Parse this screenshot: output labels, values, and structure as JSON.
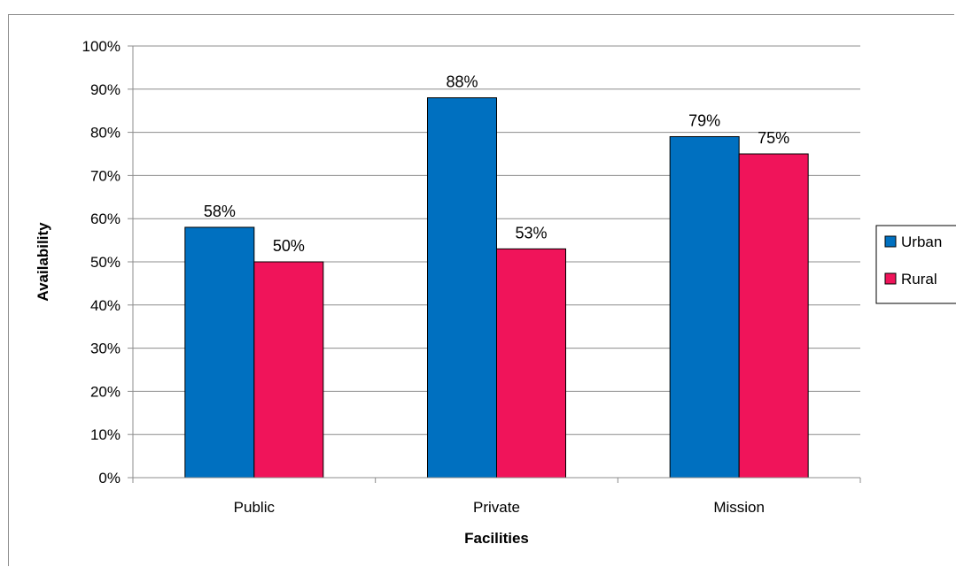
{
  "chart_data": {
    "type": "bar",
    "categories": [
      "Public",
      "Private",
      "Mission"
    ],
    "series": [
      {
        "name": "Urban",
        "values": [
          58,
          88,
          79
        ],
        "color": "#0070c0"
      },
      {
        "name": "Rural",
        "values": [
          50,
          53,
          75
        ],
        "color": "#f0145a"
      }
    ],
    "data_labels": [
      [
        "58%",
        "88%",
        "79%"
      ],
      [
        "50%",
        "53%",
        "75%"
      ]
    ],
    "xlabel": "Facilities",
    "ylabel": "Availability",
    "ylim": [
      0,
      100
    ],
    "yticks": [
      "0%",
      "10%",
      "20%",
      "30%",
      "40%",
      "50%",
      "60%",
      "70%",
      "80%",
      "90%",
      "100%"
    ],
    "grid": true,
    "legend_position": "right"
  }
}
